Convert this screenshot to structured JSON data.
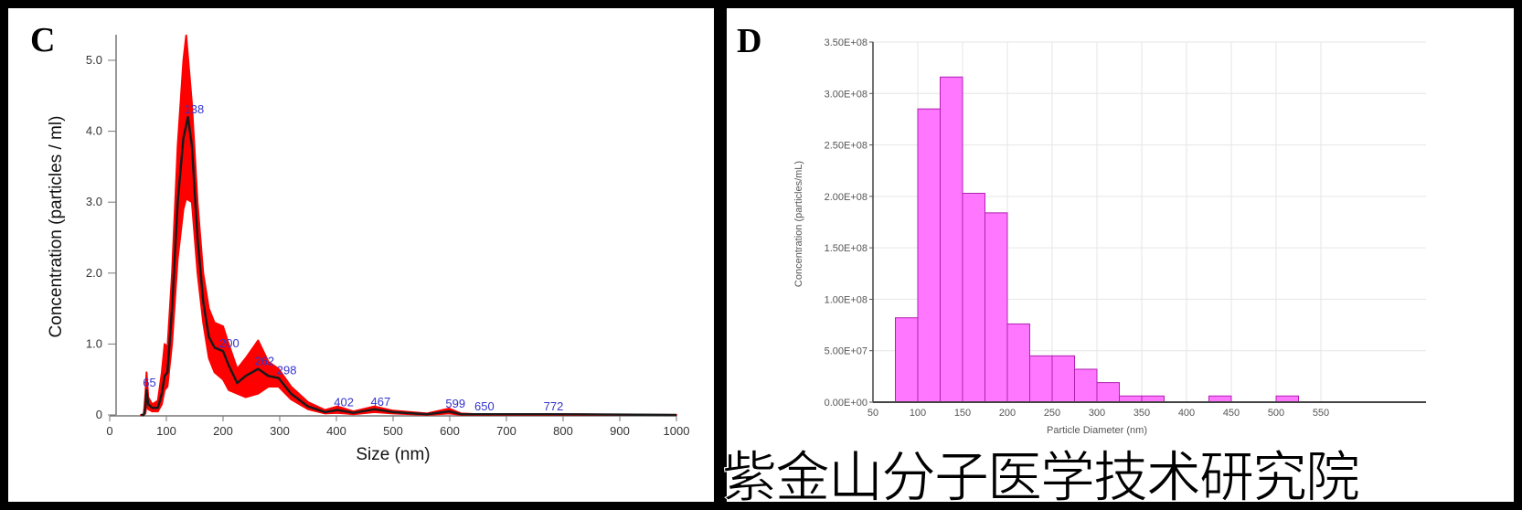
{
  "chart_data": [
    {
      "panel_label": "C",
      "type": "line",
      "xlabel": "Size (nm)",
      "ylabel": "Concentration (particles / ml)",
      "xlim": [
        0,
        1000
      ],
      "ylim": [
        0,
        5.5
      ],
      "xticks": [
        "0",
        "100",
        "200",
        "300",
        "400",
        "500",
        "600",
        "700",
        "800",
        "900",
        "1000"
      ],
      "yticks": [
        "0",
        "1.0",
        "2.0",
        "3.0",
        "4.0",
        "5.0"
      ],
      "grid": false,
      "colors": {
        "mean_line": "#1a1a1a",
        "error_band": "#ff0000",
        "peak_labels": "#3333cc"
      },
      "series": [
        {
          "role": "mean",
          "x": [
            55,
            60,
            63,
            65,
            68,
            75,
            85,
            92,
            97,
            102,
            110,
            120,
            130,
            138,
            145,
            155,
            165,
            175,
            185,
            200,
            210,
            225,
            240,
            262,
            280,
            298,
            320,
            350,
            380,
            402,
            430,
            467,
            500,
            560,
            599,
            620,
            650,
            772,
            1000
          ],
          "y": [
            0,
            0,
            0.1,
            0.35,
            0.15,
            0.1,
            0.1,
            0.3,
            0.55,
            0.6,
            1.5,
            3.0,
            3.9,
            4.2,
            3.8,
            2.5,
            1.6,
            1.1,
            0.95,
            0.9,
            0.7,
            0.45,
            0.55,
            0.65,
            0.55,
            0.52,
            0.3,
            0.12,
            0.04,
            0.07,
            0.03,
            0.08,
            0.04,
            0.01,
            0.05,
            0.01,
            0.01,
            0.01,
            0
          ]
        },
        {
          "role": "upper",
          "x": [
            55,
            60,
            63,
            65,
            68,
            75,
            85,
            92,
            97,
            102,
            110,
            120,
            130,
            135,
            145,
            155,
            165,
            175,
            185,
            200,
            210,
            225,
            240,
            262,
            280,
            298,
            320,
            350,
            380,
            402,
            430,
            467,
            500,
            560,
            599,
            620,
            650,
            772,
            1000
          ],
          "y": [
            0,
            0,
            0.3,
            0.6,
            0.25,
            0.15,
            0.2,
            0.6,
            1.0,
            0.95,
            2.0,
            3.8,
            5.0,
            5.35,
            4.4,
            3.0,
            2.0,
            1.5,
            1.3,
            1.25,
            1.0,
            0.65,
            0.8,
            1.05,
            0.75,
            0.65,
            0.4,
            0.18,
            0.07,
            0.12,
            0.05,
            0.12,
            0.06,
            0.02,
            0.09,
            0.02,
            0.01,
            0.01,
            0
          ]
        },
        {
          "role": "lower",
          "x": [
            55,
            60,
            63,
            65,
            68,
            75,
            85,
            92,
            97,
            102,
            110,
            120,
            130,
            135,
            145,
            155,
            165,
            175,
            185,
            200,
            210,
            225,
            240,
            262,
            280,
            298,
            320,
            350,
            380,
            402,
            430,
            467,
            500,
            560,
            599,
            620,
            650,
            772,
            1000
          ],
          "y": [
            0,
            0,
            0.02,
            0.15,
            0.08,
            0.05,
            0.05,
            0.15,
            0.35,
            0.4,
            1.0,
            2.2,
            2.9,
            3.05,
            3.0,
            2.0,
            1.3,
            0.8,
            0.6,
            0.5,
            0.35,
            0.3,
            0.25,
            0.3,
            0.4,
            0.4,
            0.22,
            0.08,
            0.02,
            0.03,
            0.01,
            0.04,
            0.02,
            0,
            0.02,
            0,
            0,
            0,
            0
          ]
        }
      ],
      "peak_labels": [
        {
          "x": 65,
          "y": 0.35,
          "text": "65"
        },
        {
          "x": 138,
          "y": 4.2,
          "text": "138"
        },
        {
          "x": 200,
          "y": 0.9,
          "text": "200"
        },
        {
          "x": 262,
          "y": 0.65,
          "text": "262"
        },
        {
          "x": 298,
          "y": 0.52,
          "text": "298"
        },
        {
          "x": 402,
          "y": 0.07,
          "text": "402"
        },
        {
          "x": 467,
          "y": 0.08,
          "text": "467"
        },
        {
          "x": 599,
          "y": 0.05,
          "text": "599"
        },
        {
          "x": 650,
          "y": 0.01,
          "text": "650"
        },
        {
          "x": 772,
          "y": 0.01,
          "text": "772"
        }
      ]
    },
    {
      "panel_label": "D",
      "type": "bar",
      "xlabel": "Particle Diameter (nm)",
      "ylabel": "Concentration (particles/mL)",
      "xlim": [
        50,
        550
      ],
      "ylim": [
        0,
        350000000
      ],
      "xticks": [
        "50",
        "100",
        "150",
        "200",
        "250",
        "300",
        "350",
        "400",
        "450",
        "500",
        "550"
      ],
      "yticks": [
        "0.00E+00",
        "5.00E+07",
        "1.00E+08",
        "1.50E+08",
        "2.00E+08",
        "2.50E+08",
        "3.00E+08",
        "3.50E+08"
      ],
      "grid": true,
      "colors": {
        "bar_fill": "#ff77ff",
        "bar_edge": "#b020b0",
        "grid": "#e6e6e6"
      },
      "bins": [
        {
          "x0": 75,
          "x1": 100,
          "value": 82000000
        },
        {
          "x0": 100,
          "x1": 125,
          "value": 285000000
        },
        {
          "x0": 125,
          "x1": 150,
          "value": 316000000
        },
        {
          "x0": 150,
          "x1": 175,
          "value": 203000000
        },
        {
          "x0": 175,
          "x1": 200,
          "value": 184000000
        },
        {
          "x0": 200,
          "x1": 225,
          "value": 76000000
        },
        {
          "x0": 225,
          "x1": 250,
          "value": 45000000
        },
        {
          "x0": 250,
          "x1": 275,
          "value": 45000000
        },
        {
          "x0": 275,
          "x1": 300,
          "value": 32000000
        },
        {
          "x0": 300,
          "x1": 325,
          "value": 19000000
        },
        {
          "x0": 325,
          "x1": 350,
          "value": 6000000
        },
        {
          "x0": 350,
          "x1": 375,
          "value": 6000000
        },
        {
          "x0": 425,
          "x1": 450,
          "value": 6000000
        },
        {
          "x0": 500,
          "x1": 525,
          "value": 6000000
        }
      ]
    }
  ],
  "watermark": "紫金山分子医学技术研究院"
}
